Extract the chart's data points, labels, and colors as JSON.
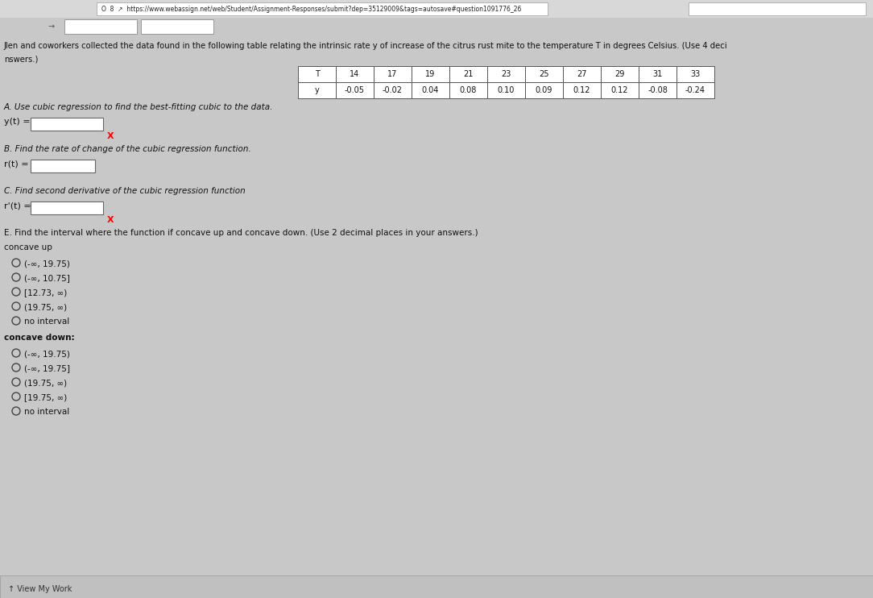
{
  "table_T": [
    "T",
    "14",
    "17",
    "19",
    "21",
    "23",
    "25",
    "27",
    "29",
    "31",
    "33"
  ],
  "table_y": [
    "y",
    "-0.05",
    "-0.02",
    "0.04",
    "0.08",
    "0.10",
    "0.09",
    "0.12",
    "0.12",
    "-0.08",
    "-0.24"
  ],
  "part_A_label": "A. Use cubic regression to find the best-fitting cubic to the data.",
  "part_A_eq": "y(t) =",
  "part_B_label": "B. Find the rate of change of the cubic regression function.",
  "part_B_eq": "r(t) =",
  "part_C_label": "C. Find second derivative of the cubic regression function",
  "part_C_eq": "r'(t) =",
  "part_E_label": "E. Find the interval where the function if concave up and concave down. (Use 2 decimal places in your answers.)",
  "concave_up_label": "concave up",
  "concave_up_options": [
    "(-∞, 19.75)",
    "(-∞, 10.75]",
    "[12.73, ∞)",
    "(19.75, ∞)",
    "no interval"
  ],
  "concave_down_label": "concave down:",
  "concave_down_options": [
    "(-∞, 19.75)",
    "(-∞, 19.75]",
    "(19.75, ∞)",
    "[19.75, ∞)",
    "no interval"
  ],
  "bg_color": "#c8c8c8",
  "text_color": "#111111",
  "url_text": "O  8  ↗  https://www.webassign.net/web/Student/Assignment-Responses/submit?dep=35129009&tags=autosave#question1091776_26",
  "title_line1": "Jlen and coworkers collected the data found in the following table relating the intrinsic rate y of increase of the citrus rust mite to the temperature T in degrees Celsius. (Use 4 deci",
  "title_line2": "nswers.)"
}
